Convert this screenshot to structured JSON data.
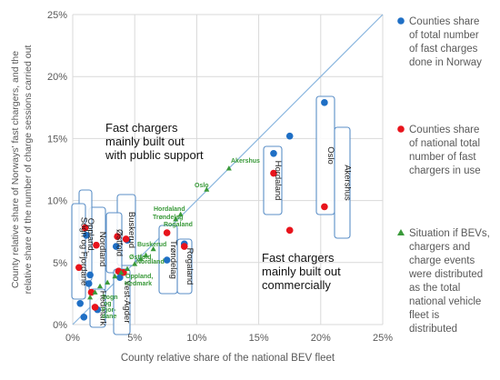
{
  "chart_data": {
    "type": "scatter",
    "title": "",
    "xlabel": "County relative share of the national BEV fleet",
    "ylabel_lines": [
      "County relative share of Norways' fast chargers, and the",
      "relative share of the number of charge sessions carried out"
    ],
    "xlim": [
      0,
      25
    ],
    "ylim": [
      0,
      25
    ],
    "x_ticks": [
      "0%",
      "5%",
      "10%",
      "15%",
      "20%",
      "25%"
    ],
    "y_ticks": [
      "0%",
      "5%",
      "10%",
      "15%",
      "20%",
      "25%"
    ],
    "grid": true,
    "legend_position": "right",
    "colors": {
      "fast_charges": "#1f6fc5",
      "fast_chargers": "#e8141c",
      "situation": "#3a9a3a",
      "reference_line": "#8ab6df",
      "grid": "#d9d9d9",
      "box_border": "#5b8fc7"
    },
    "legend": [
      {
        "key": "fast_charges",
        "marker": "circle",
        "lines": [
          "Counties share",
          "of total number",
          "of fast charges",
          "done in Norway"
        ]
      },
      {
        "key": "fast_chargers",
        "marker": "circle",
        "lines": [
          "Counties share",
          "of national total",
          "number of fast",
          "chargers in use"
        ]
      },
      {
        "key": "situation",
        "marker": "triangle",
        "lines": [
          "Situation if BEVs,",
          "chargers and",
          "charge events",
          "were distributed",
          "as the total",
          "national vehicle",
          "fleet is",
          "distributed"
        ]
      }
    ],
    "region_labels": {
      "public": [
        "Fast chargers",
        "mainly built out",
        "with public support"
      ],
      "commercial": [
        "Fast chargers",
        "mainly built out",
        "commercially"
      ]
    },
    "series": [
      {
        "key": "fast_charges",
        "name": "Counties share of total number of fast charges done in Norway",
        "points": [
          {
            "x": 0.6,
            "y": 1.7
          },
          {
            "x": 0.9,
            "y": 0.6
          },
          {
            "x": 1.1,
            "y": 7.2
          },
          {
            "x": 1.3,
            "y": 3.3
          },
          {
            "x": 1.4,
            "y": 4.0
          },
          {
            "x": 2.0,
            "y": 1.2
          },
          {
            "x": 3.5,
            "y": 6.3
          },
          {
            "x": 3.7,
            "y": 4.3
          },
          {
            "x": 3.8,
            "y": 3.8
          },
          {
            "x": 4.4,
            "y": 6.8
          },
          {
            "x": 7.6,
            "y": 5.2
          },
          {
            "x": 9.0,
            "y": 6.5
          },
          {
            "x": 16.2,
            "y": 13.8
          },
          {
            "x": 17.5,
            "y": 15.2
          },
          {
            "x": 20.3,
            "y": 17.9
          }
        ]
      },
      {
        "key": "fast_chargers",
        "name": "Counties share of national total number of fast chargers in use",
        "points": [
          {
            "x": 0.5,
            "y": 4.6
          },
          {
            "x": 1.0,
            "y": 7.8
          },
          {
            "x": 1.5,
            "y": 2.6
          },
          {
            "x": 1.8,
            "y": 1.4
          },
          {
            "x": 1.9,
            "y": 6.4
          },
          {
            "x": 3.6,
            "y": 7.1
          },
          {
            "x": 3.7,
            "y": 4.3
          },
          {
            "x": 4.1,
            "y": 4.2
          },
          {
            "x": 4.3,
            "y": 6.9
          },
          {
            "x": 7.6,
            "y": 7.4
          },
          {
            "x": 9.0,
            "y": 6.3
          },
          {
            "x": 16.2,
            "y": 12.2
          },
          {
            "x": 17.5,
            "y": 7.6
          },
          {
            "x": 20.3,
            "y": 9.5
          }
        ]
      },
      {
        "key": "situation",
        "name": "Situation if BEVs, chargers and charge events were distributed as the total national vehicle fleet is distributed",
        "points": [
          {
            "x": 1.4,
            "y": 2.2
          },
          {
            "x": 1.8,
            "y": 2.6
          },
          {
            "x": 2.2,
            "y": 3.1
          },
          {
            "x": 2.8,
            "y": 3.4
          },
          {
            "x": 3.4,
            "y": 3.9
          },
          {
            "x": 3.9,
            "y": 4.2
          },
          {
            "x": 4.4,
            "y": 4.5
          },
          {
            "x": 5.0,
            "y": 4.9
          },
          {
            "x": 5.5,
            "y": 5.3
          },
          {
            "x": 5.9,
            "y": 5.6
          },
          {
            "x": 6.5,
            "y": 6.1
          },
          {
            "x": 8.3,
            "y": 8.5
          },
          {
            "x": 8.7,
            "y": 8.9
          },
          {
            "x": 10.8,
            "y": 10.9
          },
          {
            "x": 12.6,
            "y": 12.6
          }
        ]
      }
    ],
    "county_labels": [
      {
        "text": "Oslo",
        "orientation": "vertical"
      },
      {
        "text": "Akershus",
        "orientation": "vertical"
      },
      {
        "text": "Hordaland",
        "orientation": "vertical"
      },
      {
        "text": "Rogaland",
        "orientation": "vertical"
      },
      {
        "text": "Trøndelag",
        "orientation": "vertical"
      },
      {
        "text": "Buskerud",
        "orientation": "vertical"
      },
      {
        "text": "Østfold",
        "orientation": "vertical"
      },
      {
        "text": "Vest-Agder",
        "orientation": "vertical"
      },
      {
        "text": "Nordland",
        "orientation": "vertical"
      },
      {
        "text": "Oppland,",
        "orientation": "vertical"
      },
      {
        "text": "Sogn og Fjordane",
        "orientation": "vertical"
      },
      {
        "text": "Hedmark",
        "orientation": "vertical"
      }
    ],
    "situation_labels": [
      {
        "text": "Akershus"
      },
      {
        "text": "Oslo"
      },
      {
        "text": "Hordaland"
      },
      {
        "text": "Trøndelag"
      },
      {
        "text": "Rogaland"
      },
      {
        "text": "Buskerud"
      },
      {
        "text": "Østfold"
      },
      {
        "text": "Nordland"
      },
      {
        "text": "Oppland,"
      },
      {
        "text": "Hedmark"
      },
      {
        "text": "Sogn"
      },
      {
        "text": "og"
      },
      {
        "text": "Fjor-"
      },
      {
        "text": "dane"
      }
    ]
  }
}
